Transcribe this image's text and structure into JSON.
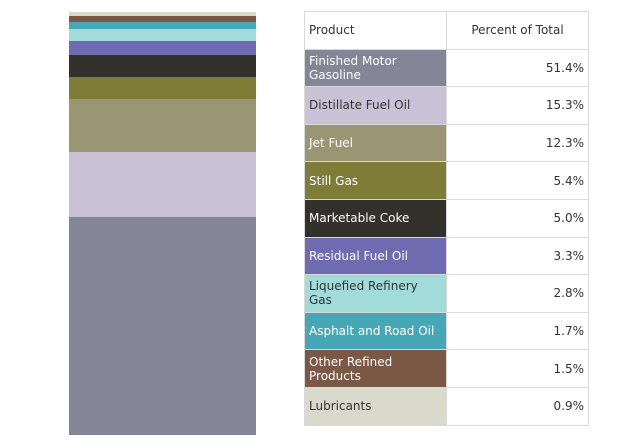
{
  "chart_data": {
    "type": "table",
    "columns": [
      "Product",
      "Percent of Total"
    ],
    "rows": [
      {
        "product": "Finished Motor Gasoline",
        "percent": 51.4,
        "percent_label": "51.4%",
        "color": "#858598",
        "text_color": "#ffffff"
      },
      {
        "product": "Distillate Fuel Oil",
        "percent": 15.3,
        "percent_label": "15.3%",
        "color": "#c9c1d6",
        "text_color": "#333333"
      },
      {
        "product": "Jet Fuel",
        "percent": 12.3,
        "percent_label": "12.3%",
        "color": "#9a9673",
        "text_color": "#ffffff"
      },
      {
        "product": "Still Gas",
        "percent": 5.4,
        "percent_label": "5.4%",
        "color": "#7e7c37",
        "text_color": "#ffffff"
      },
      {
        "product": "Marketable Coke",
        "percent": 5.0,
        "percent_label": "5.0%",
        "color": "#33312c",
        "text_color": "#ffffff"
      },
      {
        "product": "Residual Fuel Oil",
        "percent": 3.3,
        "percent_label": "3.3%",
        "color": "#6f6bb1",
        "text_color": "#ffffff"
      },
      {
        "product": "Liquefied Refinery Gas",
        "percent": 2.8,
        "percent_label": "2.8%",
        "color": "#a2dcda",
        "text_color": "#333333"
      },
      {
        "product": "Asphalt and Road Oil",
        "percent": 1.7,
        "percent_label": "1.7%",
        "color": "#46a8b6",
        "text_color": "#ffffff"
      },
      {
        "product": "Other Refined Products",
        "percent": 1.5,
        "percent_label": "1.5%",
        "color": "#7a5845",
        "text_color": "#ffffff"
      },
      {
        "product": "Lubricants",
        "percent": 0.9,
        "percent_label": "0.9%",
        "color": "#d9d9cc",
        "text_color": "#333333"
      }
    ]
  }
}
